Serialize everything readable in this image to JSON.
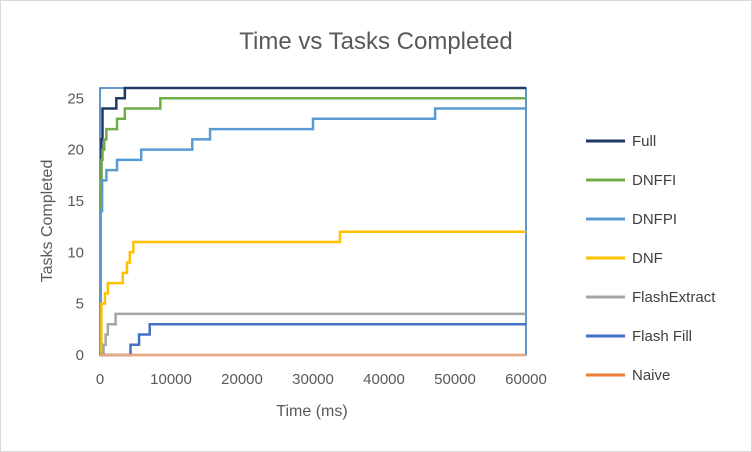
{
  "chart_data": {
    "type": "line",
    "step": true,
    "title": "Time vs Tasks Completed",
    "xlabel": "Time (ms)",
    "ylabel": "Tasks Completed",
    "xlim": [
      0,
      60000
    ],
    "ylim": [
      0,
      26
    ],
    "xticks": [
      0,
      10000,
      20000,
      30000,
      40000,
      50000,
      60000
    ],
    "yticks": [
      0,
      5,
      10,
      15,
      20,
      25
    ],
    "grid": false,
    "legend": "right",
    "series": [
      {
        "name": "Full",
        "color": "#1f3864",
        "x": [
          0,
          80,
          200,
          350,
          1000,
          1400,
          2300,
          3500,
          60000
        ],
        "y": [
          0,
          16,
          21,
          24,
          24,
          24,
          25,
          26,
          26
        ]
      },
      {
        "name": "DNFFI",
        "color": "#70ad47",
        "x": [
          0,
          80,
          200,
          350,
          600,
          900,
          2400,
          3500,
          8500,
          60000
        ],
        "y": [
          0,
          17,
          19,
          20,
          21,
          22,
          23,
          24,
          25,
          25
        ]
      },
      {
        "name": "DNFPI",
        "color": "#5b9bd5",
        "x": [
          0,
          100,
          300,
          900,
          2400,
          5800,
          13000,
          15500,
          30000,
          47200,
          60000
        ],
        "y": [
          0,
          14,
          17,
          18,
          19,
          20,
          21,
          22,
          23,
          24,
          24
        ]
      },
      {
        "name": "DNF",
        "color": "#ffc000",
        "x": [
          0,
          200,
          700,
          1100,
          3200,
          3800,
          4200,
          4700,
          33800,
          60000
        ],
        "y": [
          0,
          5,
          6,
          7,
          8,
          9,
          10,
          11,
          12,
          12
        ]
      },
      {
        "name": "FlashExtract",
        "color": "#a5a5a5",
        "x": [
          0,
          500,
          800,
          1100,
          2200,
          60000
        ],
        "y": [
          0,
          1,
          2,
          3,
          4,
          4
        ]
      },
      {
        "name": "Flash Fill",
        "color": "#4472c4",
        "x": [
          0,
          4300,
          5500,
          7000,
          60000
        ],
        "y": [
          0,
          1,
          2,
          3,
          3
        ]
      },
      {
        "name": "Naive",
        "color": "#ed7d31",
        "x": [
          0,
          60000
        ],
        "y": [
          0,
          0
        ]
      }
    ]
  }
}
